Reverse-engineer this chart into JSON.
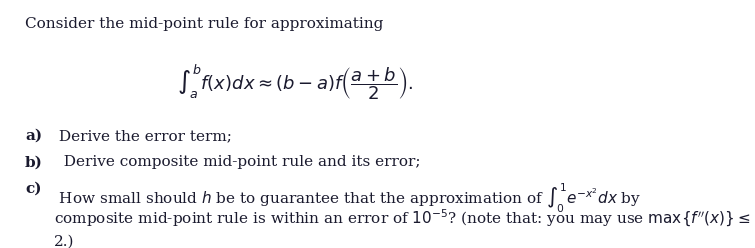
{
  "background_color": "#ffffff",
  "title_line": "Consider the mid-point rule for approximating",
  "formula": "$\\int_a^b f(x)dx \\approx (b-a)f\\left(\\dfrac{a+b}{2}\\right).$",
  "item_a_label": "a)",
  "item_a_text": " Derive the error term;",
  "item_b_label": "b)",
  "item_b_text": "  Derive composite mid-point rule and its error;",
  "item_c_label": "c)",
  "item_c_text1": " How small should $h$ be to guarantee that the approximation of $\\int_0^1 e^{-x^2}dx$ by",
  "item_c_text2": "composite mid-point rule is within an error of $10^{-5}$? (note that: you may use $\\max\\{f''(x)\\} \\leq$",
  "item_c_text3": "2.)",
  "font_size_title": 11,
  "font_size_formula": 13,
  "font_size_items": 11,
  "text_color": "#1a1a2e",
  "bold_labels": true
}
